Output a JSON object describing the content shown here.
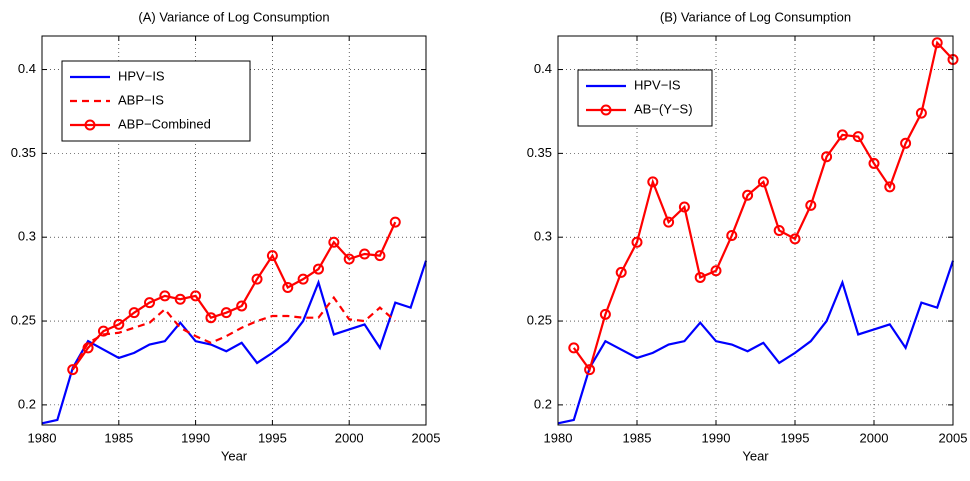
{
  "chart_data": [
    {
      "type": "line",
      "title": "(A) Variance of Log Consumption",
      "x_label": "Year",
      "x": [
        1980,
        1981,
        1982,
        1983,
        1984,
        1985,
        1986,
        1987,
        1988,
        1989,
        1990,
        1991,
        1992,
        1993,
        1994,
        1995,
        1996,
        1997,
        1998,
        1999,
        2000,
        2001,
        2002,
        2003,
        2004,
        2005
      ],
      "xlim": [
        1980,
        2005
      ],
      "xticks": [
        1980,
        1985,
        1990,
        1995,
        2000,
        2005
      ],
      "ylim": [
        0.188,
        0.42
      ],
      "yticks": [
        0.2,
        0.25,
        0.3,
        0.35,
        0.4
      ],
      "grid": true,
      "legend": "upper left",
      "series": [
        {
          "name": "HPV−IS",
          "color": "#0000ff",
          "style": "solid",
          "marker": "none",
          "values": [
            0.189,
            0.191,
            0.222,
            0.238,
            0.233,
            0.228,
            0.231,
            0.236,
            0.238,
            0.249,
            0.238,
            0.236,
            0.232,
            0.237,
            0.225,
            0.231,
            0.238,
            0.25,
            0.273,
            0.242,
            0.245,
            0.248,
            0.234,
            0.261,
            0.258,
            0.286
          ]
        },
        {
          "name": "ABP−IS",
          "color": "#ff0000",
          "style": "dashed",
          "marker": "none",
          "values": [
            null,
            null,
            0.221,
            0.237,
            0.242,
            0.243,
            0.246,
            0.249,
            0.257,
            0.246,
            0.241,
            0.237,
            0.241,
            0.246,
            0.25,
            0.253,
            0.253,
            0.252,
            0.252,
            0.264,
            0.251,
            0.25,
            0.258,
            0.25,
            null,
            null
          ]
        },
        {
          "name": "ABP−Combined",
          "color": "#ff0000",
          "style": "solid",
          "marker": "o",
          "values": [
            null,
            null,
            0.221,
            0.234,
            0.244,
            0.248,
            0.255,
            0.261,
            0.265,
            0.263,
            0.265,
            0.252,
            0.255,
            0.259,
            0.275,
            0.289,
            0.27,
            0.275,
            0.281,
            0.297,
            0.287,
            0.29,
            0.289,
            0.309,
            null,
            null
          ]
        }
      ]
    },
    {
      "type": "line",
      "title": "(B) Variance of Log Consumption",
      "x_label": "Year",
      "x": [
        1980,
        1981,
        1982,
        1983,
        1984,
        1985,
        1986,
        1987,
        1988,
        1989,
        1990,
        1991,
        1992,
        1993,
        1994,
        1995,
        1996,
        1997,
        1998,
        1999,
        2000,
        2001,
        2002,
        2003,
        2004,
        2005
      ],
      "xlim": [
        1980,
        2005
      ],
      "xticks": [
        1980,
        1985,
        1990,
        1995,
        2000,
        2005
      ],
      "ylim": [
        0.188,
        0.42
      ],
      "yticks": [
        0.2,
        0.25,
        0.3,
        0.35,
        0.4
      ],
      "grid": true,
      "legend": "upper left",
      "series": [
        {
          "name": "HPV−IS",
          "color": "#0000ff",
          "style": "solid",
          "marker": "none",
          "values": [
            0.189,
            0.191,
            0.222,
            0.238,
            0.233,
            0.228,
            0.231,
            0.236,
            0.238,
            0.249,
            0.238,
            0.236,
            0.232,
            0.237,
            0.225,
            0.231,
            0.238,
            0.25,
            0.273,
            0.242,
            0.245,
            0.248,
            0.234,
            0.261,
            0.258,
            0.286
          ]
        },
        {
          "name": "AB−(Y−S)",
          "color": "#ff0000",
          "style": "solid",
          "marker": "o",
          "values": [
            null,
            0.234,
            0.221,
            0.254,
            0.279,
            0.297,
            0.333,
            0.309,
            0.318,
            0.276,
            0.28,
            0.301,
            0.325,
            0.333,
            0.304,
            0.299,
            0.319,
            0.348,
            0.361,
            0.36,
            0.344,
            0.33,
            0.356,
            0.374,
            0.416,
            0.406
          ]
        }
      ]
    }
  ]
}
